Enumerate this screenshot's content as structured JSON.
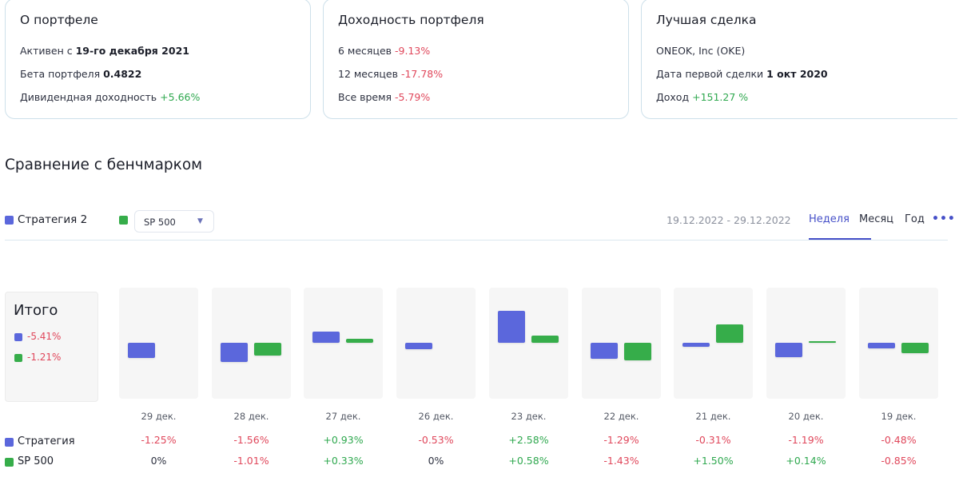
{
  "cards": {
    "portfolio": {
      "title": "О портфеле",
      "active_prefix": "Активен с",
      "active_date": "19-го декабря 2021",
      "beta_label": "Бета портфеля",
      "beta_value": "0.4822",
      "dividend_label": "Дивидендная доходность",
      "dividend_value": "+5.66%"
    },
    "returns": {
      "title": "Доходность портфеля",
      "m6_label": "6 месяцев",
      "m6_value": "-9.13%",
      "m12_label": "12 месяцев",
      "m12_value": "-17.78%",
      "all_label": "Все время",
      "all_value": "-5.79%"
    },
    "best_deal": {
      "title": "Лучшая сделка",
      "ticker": "ONEOK, Inc (OKE)",
      "first_deal_label": "Дата первой сделки",
      "first_deal_date": "1 окт 2020",
      "income_label": "Доход",
      "income_value": "+151.27 %"
    }
  },
  "benchmark": {
    "section_title": "Сравнение с бенчмарком",
    "strategy_label": "Стратегия 2",
    "benchmark_select_value": "SP 500",
    "date_range": "19.12.2022 - 29.12.2022",
    "tabs": [
      "Неделя",
      "Месяц",
      "Год"
    ],
    "active_tab": "Неделя",
    "more_label": "•••",
    "total": {
      "title": "Итого",
      "strategy": "-5.41%",
      "benchmark": "-1.21%"
    },
    "row_labels": {
      "strategy": "Стратегия",
      "benchmark": "SP 500"
    },
    "colors": {
      "strategy": "#5b67dc",
      "benchmark": "#36ad4a",
      "positive": "#2fa84f",
      "negative": "#e0475b"
    }
  },
  "chart_data": {
    "type": "bar",
    "categories": [
      "29 дек.",
      "28 дек.",
      "27 дек.",
      "26 дек.",
      "23 дек.",
      "22 дек.",
      "21 дек.",
      "20 дек.",
      "19 дек."
    ],
    "series": [
      {
        "name": "Стратегия",
        "values": [
          -1.25,
          -1.56,
          0.93,
          -0.53,
          2.58,
          -1.29,
          -0.31,
          -1.19,
          -0.48
        ],
        "labels": [
          "-1.25%",
          "-1.56%",
          "+0.93%",
          "-0.53%",
          "+2.58%",
          "-1.29%",
          "-0.31%",
          "-1.19%",
          "-0.48%"
        ]
      },
      {
        "name": "SP 500",
        "values": [
          0,
          -1.01,
          0.33,
          0,
          0.58,
          -1.43,
          1.5,
          0.14,
          -0.85
        ],
        "labels": [
          "0%",
          "-1.01%",
          "+0.33%",
          "0%",
          "+0.58%",
          "-1.43%",
          "+1.50%",
          "+0.14%",
          "-0.85%"
        ]
      }
    ]
  }
}
